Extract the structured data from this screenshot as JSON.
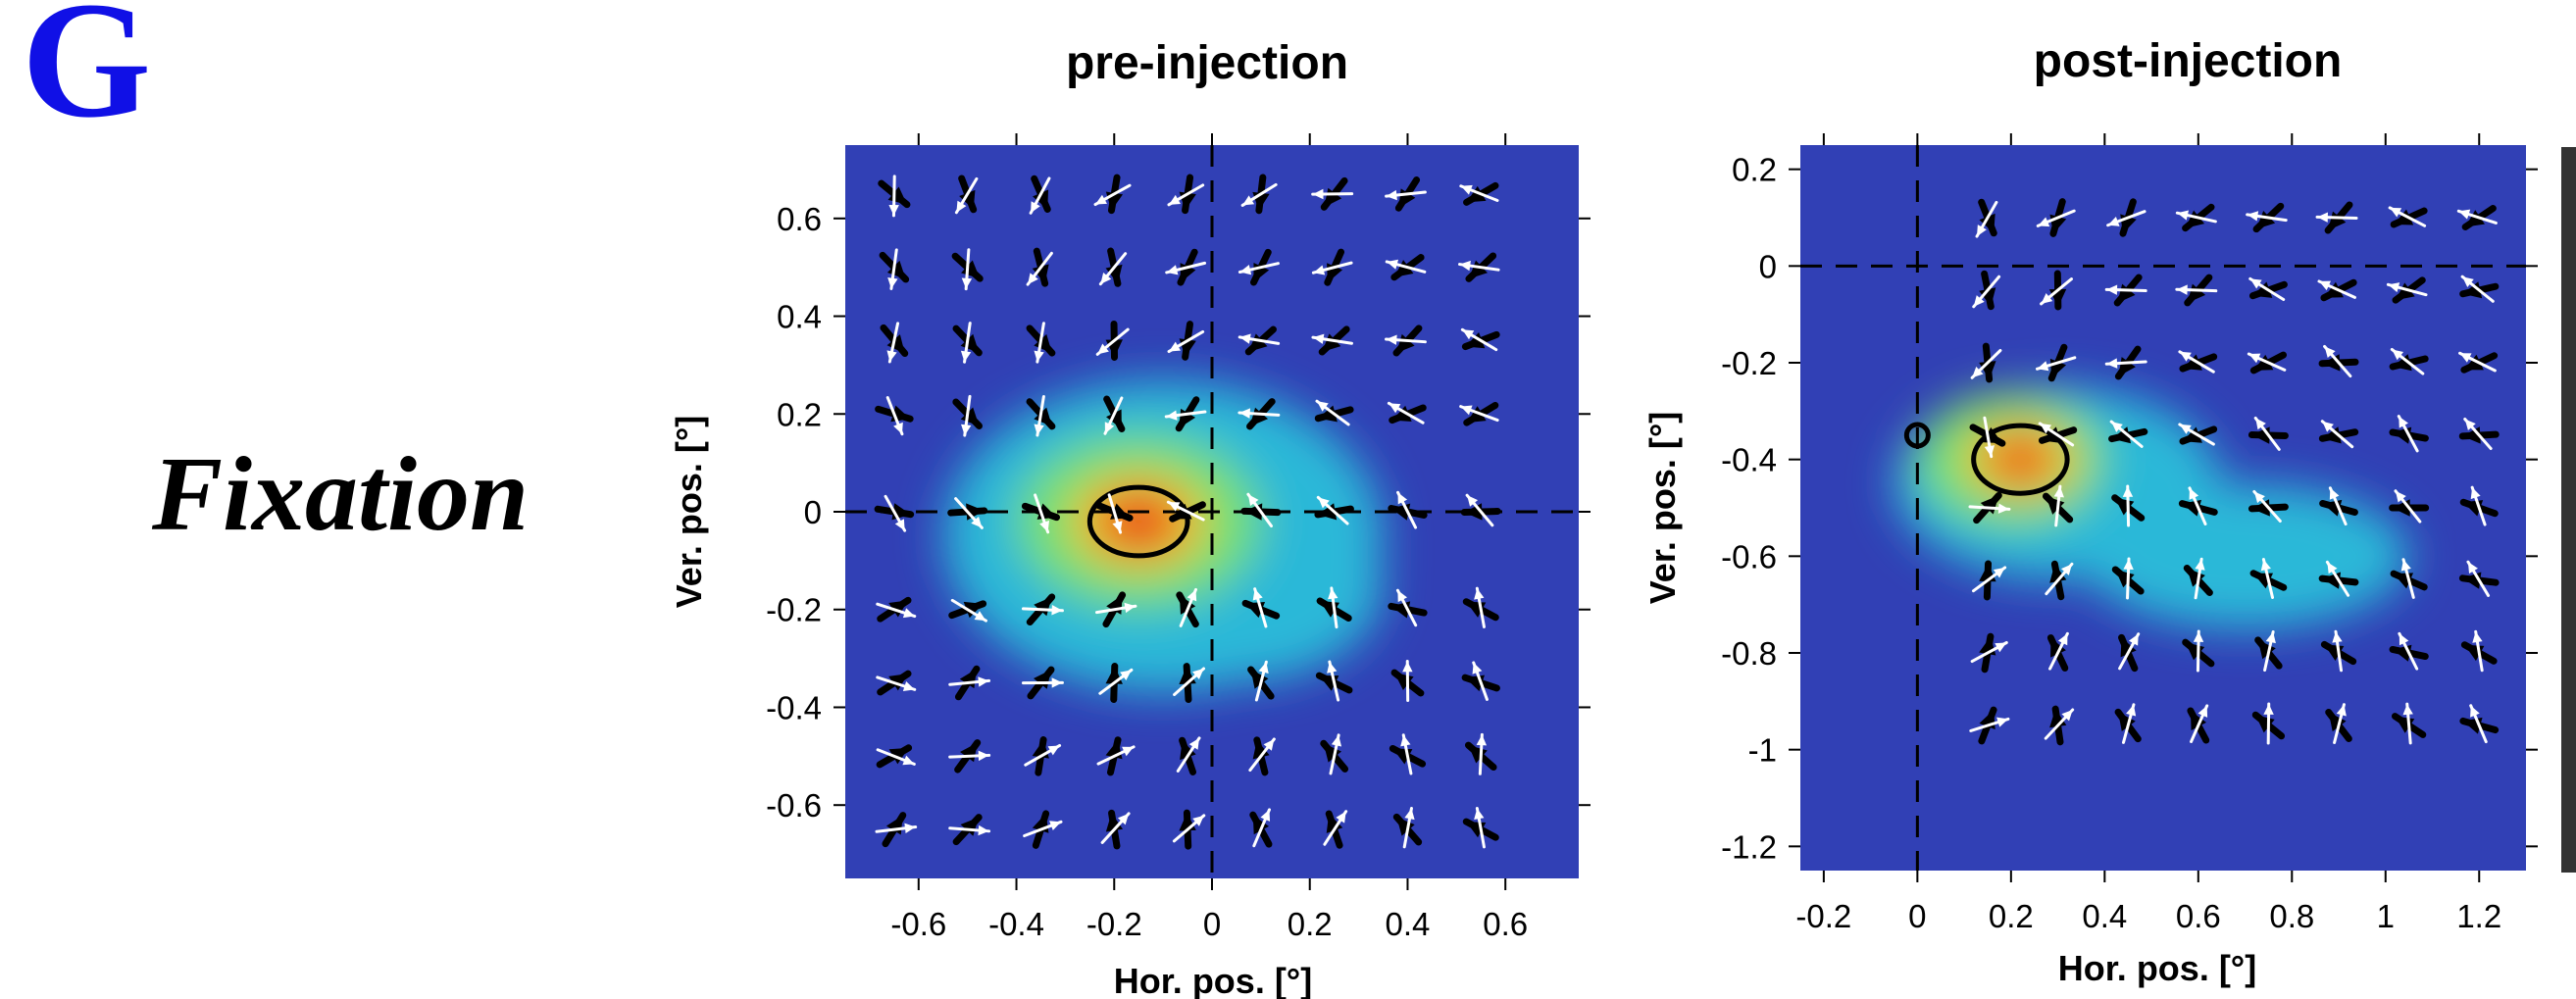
{
  "panel_letter": "G",
  "row_label": "Fixation",
  "colors": {
    "background": "#3140b5",
    "tick": "#000000",
    "white_arrow": "#ffffff",
    "black_arrow": "#000000"
  },
  "chart_data": [
    {
      "type": "heatmap",
      "title": "pre-injection",
      "xlabel": "Hor. pos. [°]",
      "ylabel": "Ver. pos. [°]",
      "xlim": [
        -0.75,
        0.75
      ],
      "ylim": [
        -0.75,
        0.75
      ],
      "xticks": [
        -0.6,
        -0.4,
        -0.2,
        0,
        0.2,
        0.4,
        0.6
      ],
      "xtick_labels": [
        "-0.6",
        "-0.4",
        "-0.2",
        "0",
        "0.2",
        "0.4",
        "0.6"
      ],
      "yticks": [
        -0.6,
        -0.4,
        -0.2,
        0,
        0.2,
        0.4,
        0.6
      ],
      "ytick_labels": [
        "-0.6",
        "-0.4",
        "-0.2",
        "0",
        "0.2",
        "0.4",
        "0.6"
      ],
      "zero_lines": true,
      "density_peak": [
        -0.15,
        -0.02
      ],
      "heat_blobs": [
        {
          "x": -0.1,
          "y": -0.05,
          "rx": 0.45,
          "ry": 0.32,
          "level": 1
        },
        {
          "x": 0.05,
          "y": -0.15,
          "rx": 0.3,
          "ry": 0.2,
          "level": 1
        },
        {
          "x": -0.15,
          "y": -0.02,
          "rx": 0.25,
          "ry": 0.18,
          "level": 2
        },
        {
          "x": -0.15,
          "y": -0.02,
          "rx": 0.14,
          "ry": 0.1,
          "level": 3
        },
        {
          "x": -0.15,
          "y": -0.02,
          "rx": 0.08,
          "ry": 0.06,
          "level": 4
        }
      ],
      "vector_grid": {
        "x": [
          -0.65,
          -0.5,
          -0.35,
          -0.2,
          -0.05,
          0.1,
          0.25,
          0.4,
          0.55
        ],
        "y": [
          0.65,
          0.5,
          0.35,
          0.2,
          0.0,
          -0.2,
          -0.35,
          -0.5,
          -0.65
        ]
      }
    },
    {
      "type": "heatmap",
      "title": "post-injection",
      "xlabel": "Hor. pos. [°]",
      "ylabel": "Ver. pos. [°]",
      "xlim": [
        -0.25,
        1.3
      ],
      "ylim": [
        -1.25,
        0.25
      ],
      "xticks": [
        -0.2,
        0,
        0.2,
        0.4,
        0.6,
        0.8,
        1,
        1.2
      ],
      "xtick_labels": [
        "-0.2",
        "0",
        "0.2",
        "0.4",
        "0.6",
        "0.8",
        "1",
        "1.2"
      ],
      "yticks": [
        0.2,
        0,
        -0.2,
        -0.4,
        -0.6,
        -0.8,
        -1,
        -1.2
      ],
      "ytick_labels": [
        "0.2",
        "0",
        "-0.2",
        "-0.4",
        "-0.6",
        "-0.8",
        "-1",
        "-1.2"
      ],
      "zero_lines": true,
      "density_peak": [
        0.22,
        -0.4
      ],
      "reference_circle": [
        0.0,
        -0.35
      ],
      "heat_blobs": [
        {
          "x": 0.3,
          "y": -0.45,
          "rx": 0.35,
          "ry": 0.2,
          "level": 1
        },
        {
          "x": 0.7,
          "y": -0.6,
          "rx": 0.35,
          "ry": 0.15,
          "level": 1
        },
        {
          "x": 0.2,
          "y": -0.4,
          "rx": 0.2,
          "ry": 0.14,
          "level": 2
        },
        {
          "x": 0.22,
          "y": -0.4,
          "rx": 0.12,
          "ry": 0.08,
          "level": 3
        },
        {
          "x": 0.22,
          "y": -0.4,
          "rx": 0.06,
          "ry": 0.05,
          "level": 4
        }
      ],
      "vector_grid": {
        "x": [
          0.15,
          0.3,
          0.45,
          0.6,
          0.75,
          0.9,
          1.05,
          1.2
        ],
        "y": [
          0.1,
          -0.05,
          -0.2,
          -0.35,
          -0.5,
          -0.65,
          -0.8,
          -0.95
        ]
      }
    }
  ]
}
